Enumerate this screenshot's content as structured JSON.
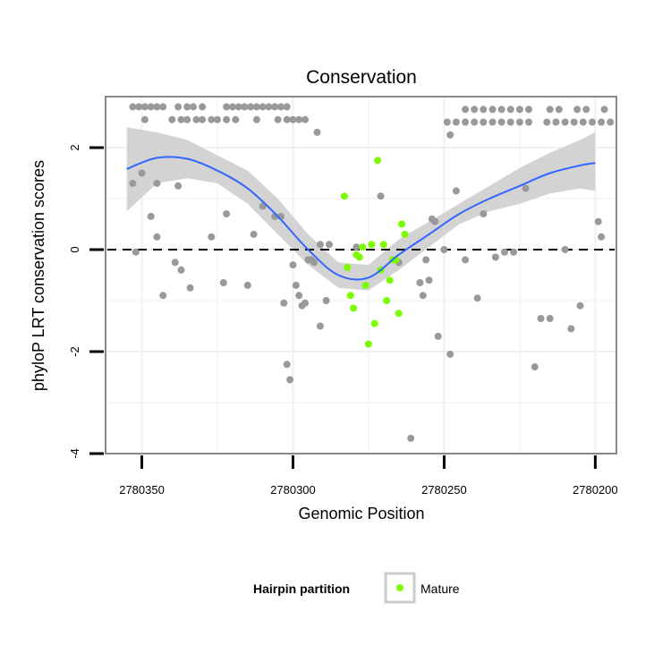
{
  "chart_data": {
    "type": "scatter",
    "title": "Conservation",
    "xlabel": "Genomic Position",
    "ylabel": "phyloP LRT conservation scores",
    "x_reversed": true,
    "xlim": [
      2780193,
      2780362
    ],
    "ylim": [
      -4,
      3
    ],
    "x_ticks": [
      2780350,
      2780300,
      2780250,
      2780200
    ],
    "x_tick_labels": [
      "2780350",
      "2780300",
      "2780250",
      "2780200"
    ],
    "y_ticks": [
      -4,
      -2,
      0,
      2
    ],
    "y_tick_labels": [
      "-4",
      "-2",
      "0",
      "2"
    ],
    "grid": true,
    "reference_line": {
      "y": 0,
      "style": "dashed",
      "color": "#000000"
    },
    "colors": {
      "other_points": "#999999",
      "mature_points": "#7CFC00",
      "smooth_line": "#3366FF",
      "confidence_band": "#D3D3D3",
      "panel_border": "#888888",
      "grid": "#F0F0F0"
    },
    "legend": {
      "title": "Hairpin partition",
      "placement": "bottom",
      "entries": [
        {
          "label": "Mature",
          "color": "#7CFC00"
        }
      ]
    },
    "series": [
      {
        "points": [
          [
            2780353,
            2.8
          ],
          [
            2780351,
            2.8
          ],
          [
            2780349,
            2.8
          ],
          [
            2780347,
            2.8
          ],
          [
            2780345,
            2.8
          ],
          [
            2780343,
            2.8
          ],
          [
            2780338,
            2.8
          ],
          [
            2780335,
            2.8
          ],
          [
            2780333,
            2.8
          ],
          [
            2780330,
            2.8
          ],
          [
            2780322,
            2.8
          ],
          [
            2780320,
            2.8
          ],
          [
            2780318,
            2.8
          ],
          [
            2780316,
            2.8
          ],
          [
            2780314,
            2.8
          ],
          [
            2780312,
            2.8
          ],
          [
            2780310,
            2.8
          ],
          [
            2780308,
            2.8
          ],
          [
            2780306,
            2.8
          ],
          [
            2780304,
            2.8
          ],
          [
            2780302,
            2.8
          ],
          [
            2780349,
            2.55
          ],
          [
            2780340,
            2.55
          ],
          [
            2780337,
            2.55
          ],
          [
            2780335,
            2.55
          ],
          [
            2780332,
            2.55
          ],
          [
            2780330,
            2.55
          ],
          [
            2780327,
            2.55
          ],
          [
            2780325,
            2.55
          ],
          [
            2780322,
            2.55
          ],
          [
            2780319,
            2.55
          ],
          [
            2780312,
            2.55
          ],
          [
            2780305,
            2.55
          ],
          [
            2780302,
            2.55
          ],
          [
            2780300,
            2.55
          ],
          [
            2780298,
            2.55
          ],
          [
            2780296,
            2.55
          ],
          [
            2780243,
            2.75
          ],
          [
            2780240,
            2.75
          ],
          [
            2780237,
            2.75
          ],
          [
            2780234,
            2.75
          ],
          [
            2780231,
            2.75
          ],
          [
            2780228,
            2.75
          ],
          [
            2780225,
            2.75
          ],
          [
            2780222,
            2.75
          ],
          [
            2780215,
            2.75
          ],
          [
            2780212,
            2.75
          ],
          [
            2780206,
            2.75
          ],
          [
            2780203,
            2.75
          ],
          [
            2780197,
            2.75
          ],
          [
            2780249,
            2.5
          ],
          [
            2780246,
            2.5
          ],
          [
            2780243,
            2.5
          ],
          [
            2780240,
            2.5
          ],
          [
            2780237,
            2.5
          ],
          [
            2780234,
            2.5
          ],
          [
            2780231,
            2.5
          ],
          [
            2780228,
            2.5
          ],
          [
            2780225,
            2.5
          ],
          [
            2780222,
            2.5
          ],
          [
            2780216,
            2.5
          ],
          [
            2780213,
            2.5
          ],
          [
            2780210,
            2.5
          ],
          [
            2780207,
            2.5
          ],
          [
            2780204,
            2.5
          ],
          [
            2780201,
            2.5
          ],
          [
            2780198,
            2.5
          ],
          [
            2780195,
            2.5
          ],
          [
            2780292,
            2.3
          ],
          [
            2780248,
            2.25
          ],
          [
            2780353,
            1.3
          ],
          [
            2780350,
            1.5
          ],
          [
            2780345,
            1.3
          ],
          [
            2780338,
            1.25
          ],
          [
            2780347,
            0.65
          ],
          [
            2780345,
            0.25
          ],
          [
            2780352,
            -0.05
          ],
          [
            2780343,
            -0.9
          ],
          [
            2780339,
            -0.25
          ],
          [
            2780337,
            -0.4
          ],
          [
            2780334,
            -0.75
          ],
          [
            2780327,
            0.25
          ],
          [
            2780323,
            -0.65
          ],
          [
            2780322,
            0.7
          ],
          [
            2780315,
            -0.7
          ],
          [
            2780313,
            0.3
          ],
          [
            2780310,
            0.85
          ],
          [
            2780306,
            0.65
          ],
          [
            2780304,
            0.65
          ],
          [
            2780303,
            -1.05
          ],
          [
            2780302,
            -2.25
          ],
          [
            2780301,
            -2.55
          ],
          [
            2780300,
            -0.3
          ],
          [
            2780299,
            -0.7
          ],
          [
            2780298,
            -0.9
          ],
          [
            2780297,
            -1.1
          ],
          [
            2780296,
            -1.05
          ],
          [
            2780295,
            -0.2
          ],
          [
            2780294,
            -0.2
          ],
          [
            2780293,
            -0.25
          ],
          [
            2780291,
            0.1
          ],
          [
            2780291,
            -1.5
          ],
          [
            2780289,
            -1.0
          ],
          [
            2780288,
            0.1
          ],
          [
            2780279,
            0.05
          ],
          [
            2780271,
            1.05
          ],
          [
            2780265,
            -0.25
          ],
          [
            2780261,
            -3.7
          ],
          [
            2780258,
            -0.65
          ],
          [
            2780257,
            -0.9
          ],
          [
            2780256,
            -0.2
          ],
          [
            2780255,
            -0.6
          ],
          [
            2780254,
            0.6
          ],
          [
            2780253,
            0.55
          ],
          [
            2780252,
            -1.7
          ],
          [
            2780250,
            0.0
          ],
          [
            2780248,
            -2.05
          ],
          [
            2780246,
            1.15
          ],
          [
            2780243,
            -0.2
          ],
          [
            2780239,
            -0.95
          ],
          [
            2780237,
            0.7
          ],
          [
            2780233,
            -0.15
          ],
          [
            2780230,
            -0.05
          ],
          [
            2780227,
            -0.05
          ],
          [
            2780223,
            1.2
          ],
          [
            2780220,
            -2.3
          ],
          [
            2780218,
            -1.35
          ],
          [
            2780215,
            -1.35
          ],
          [
            2780210,
            0.0
          ],
          [
            2780208,
            -1.55
          ],
          [
            2780205,
            -1.1
          ],
          [
            2780199,
            0.55
          ],
          [
            2780198,
            0.25
          ]
        ]
      },
      {
        "points": [
          [
            2780283,
            1.05
          ],
          [
            2780282,
            -0.35
          ],
          [
            2780281,
            -0.9
          ],
          [
            2780280,
            -1.15
          ],
          [
            2780279,
            -0.1
          ],
          [
            2780278,
            -0.15
          ],
          [
            2780277,
            0.05
          ],
          [
            2780276,
            -0.7
          ],
          [
            2780275,
            -1.85
          ],
          [
            2780274,
            0.1
          ],
          [
            2780273,
            -1.45
          ],
          [
            2780272,
            1.75
          ],
          [
            2780271,
            -0.4
          ],
          [
            2780270,
            0.1
          ],
          [
            2780269,
            -1.0
          ],
          [
            2780268,
            -0.6
          ],
          [
            2780267,
            -0.2
          ],
          [
            2780266,
            -0.2
          ],
          [
            2780265,
            -1.25
          ],
          [
            2780264,
            0.5
          ],
          [
            2780263,
            0.3
          ]
        ]
      }
    ],
    "smooth": {
      "x": [
        2780355,
        2780345,
        2780335,
        2780325,
        2780315,
        2780305,
        2780295,
        2780285,
        2780275,
        2780265,
        2780255,
        2780245,
        2780235,
        2780225,
        2780215,
        2780205,
        2780200
      ],
      "y": [
        1.58,
        1.8,
        1.78,
        1.55,
        1.2,
        0.65,
        0.0,
        -0.5,
        -0.55,
        -0.1,
        0.3,
        0.7,
        1.0,
        1.25,
        1.5,
        1.65,
        1.7
      ],
      "lower": [
        0.75,
        1.3,
        1.4,
        1.3,
        0.9,
        0.3,
        -0.3,
        -0.75,
        -0.8,
        -0.4,
        0.05,
        0.5,
        0.75,
        0.9,
        1.1,
        1.2,
        1.15
      ],
      "upper": [
        2.4,
        2.3,
        2.15,
        1.85,
        1.55,
        1.0,
        0.3,
        -0.25,
        -0.3,
        0.2,
        0.55,
        0.9,
        1.25,
        1.6,
        1.9,
        2.15,
        2.3
      ]
    }
  }
}
